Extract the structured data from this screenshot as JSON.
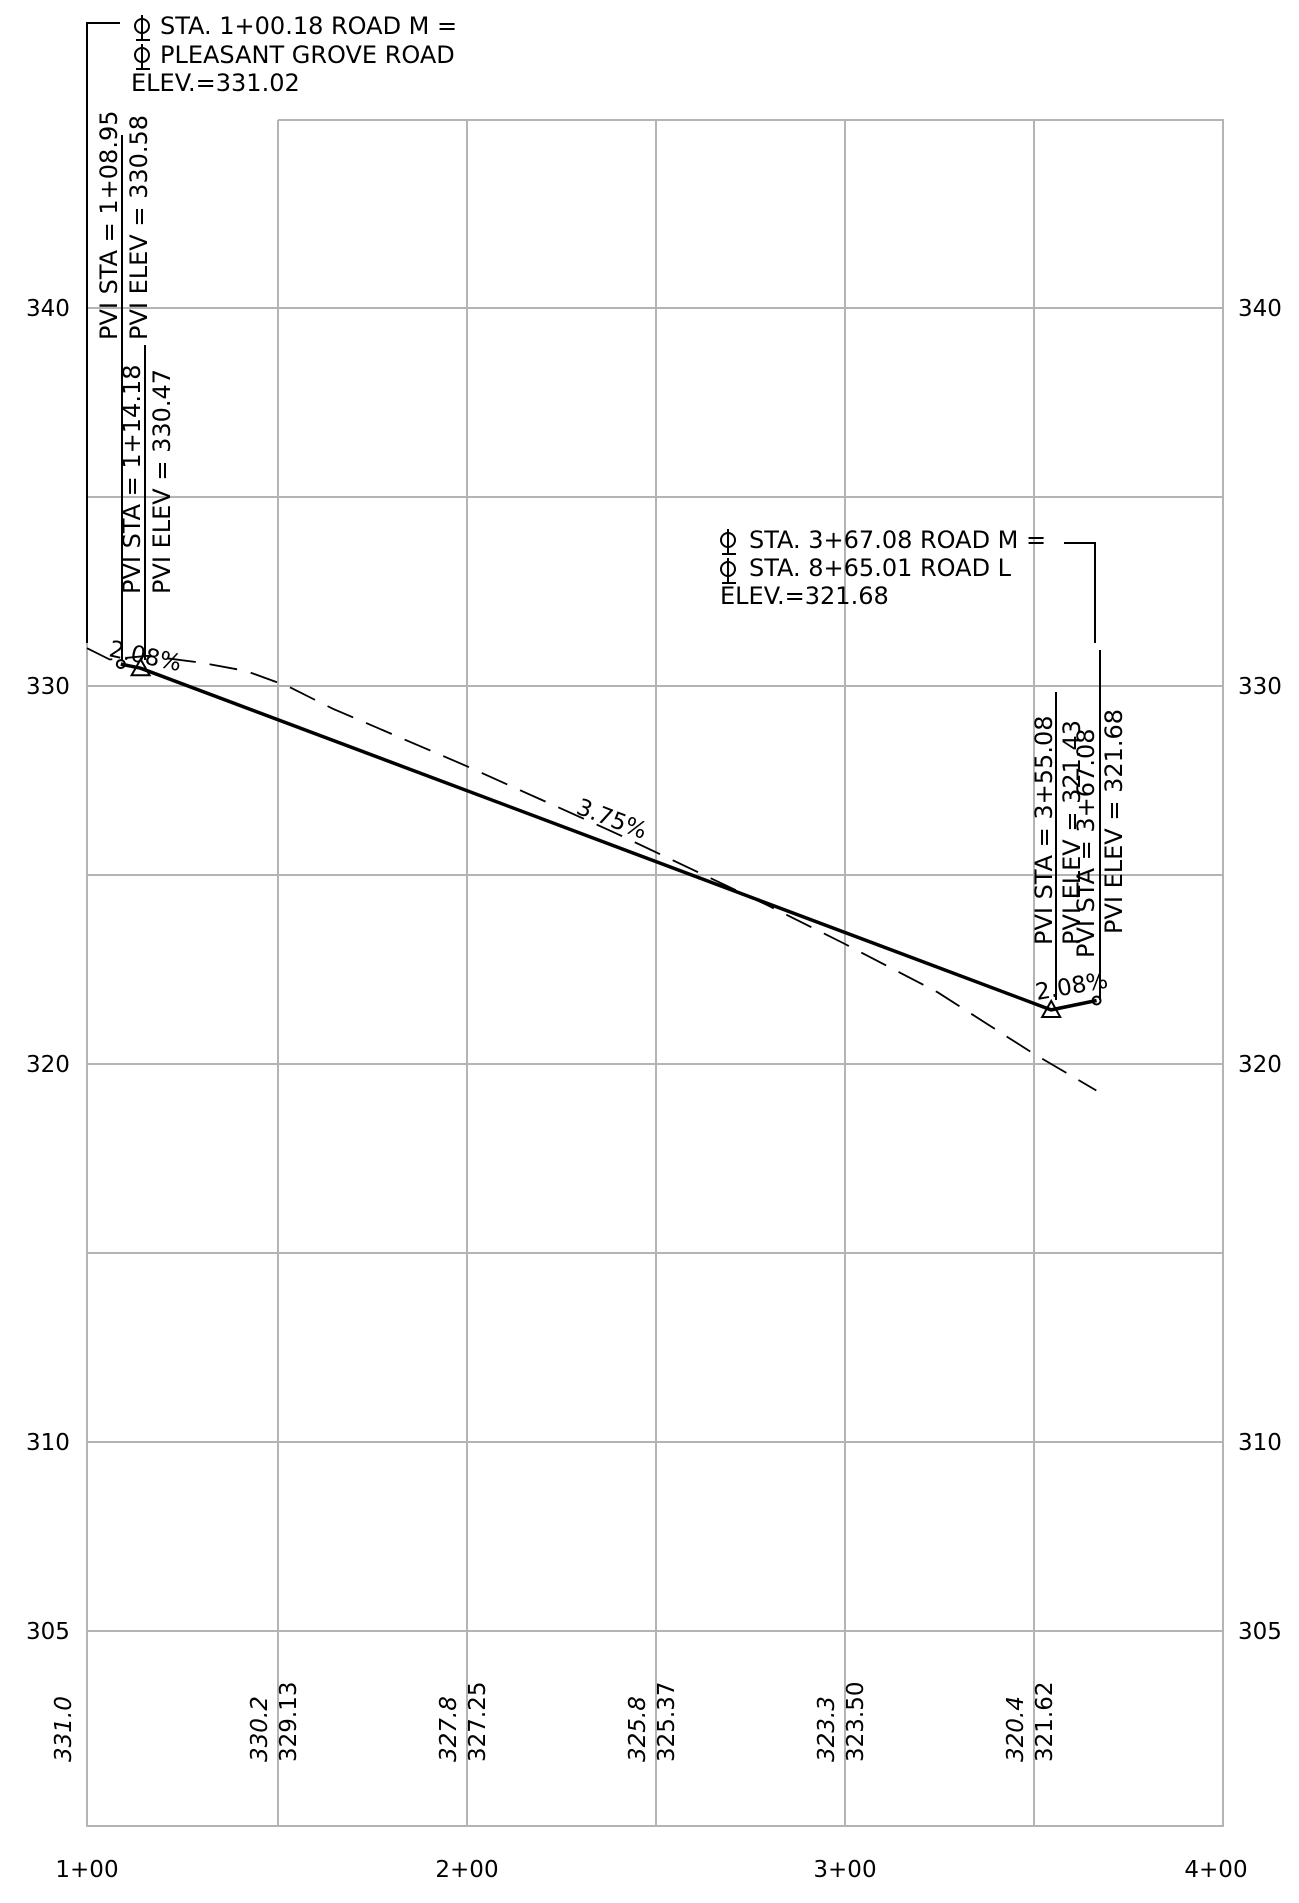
{
  "chart_data": {
    "type": "line",
    "x_ticks": [
      "1+00",
      "2+00",
      "3+00",
      "4+00"
    ],
    "y_ticks": [
      "305",
      "310",
      "320",
      "330",
      "340"
    ],
    "xlim": [
      100,
      400
    ],
    "ylim": [
      305,
      345
    ],
    "grid": true,
    "series": [
      {
        "style": "solid",
        "x": [
          108.95,
          114.18,
          355.08,
          367.08
        ],
        "y": [
          330.58,
          330.47,
          321.43,
          321.68
        ]
      },
      {
        "style": "dashed",
        "x": [
          100,
          106,
          116,
          130,
          142,
          153,
          165,
          200,
          240,
          280,
          300,
          325,
          350,
          367
        ],
        "y": [
          331.0,
          330.7,
          330.8,
          330.62,
          330.4,
          330.0,
          329.4,
          327.9,
          326.1,
          324.2,
          323.2,
          321.9,
          320.3,
          319.3
        ]
      }
    ],
    "grade_labels": [
      "2.08%",
      "3.75%",
      "2.08%"
    ],
    "station_elevations": [
      {
        "station": 100,
        "existing": "331.0",
        "proposed": ""
      },
      {
        "station": 150,
        "existing": "330.2",
        "proposed": "329.13"
      },
      {
        "station": 200,
        "existing": "327.8",
        "proposed": "327.25"
      },
      {
        "station": 250,
        "existing": "325.8",
        "proposed": "325.37"
      },
      {
        "station": 300,
        "existing": "323.3",
        "proposed": "323.50"
      },
      {
        "station": 350,
        "existing": "320.4",
        "proposed": "321.62"
      }
    ],
    "callouts": {
      "top_line1": "STA. 1+00.18 ROAD M =",
      "top_line2": "PLEASANT GROVE ROAD",
      "top_line3": "ELEV.=331.02",
      "right_line1": "STA. 3+67.08 ROAD M =",
      "right_line2": "STA. 8+65.01 ROAD L",
      "right_line3": "ELEV.=321.68"
    },
    "pvi_labels": [
      {
        "sta": "PVI STA = 1+08.95",
        "elev": "PVI ELEV = 330.58"
      },
      {
        "sta": "PVI STA = 1+14.18",
        "elev": "PVI ELEV = 330.47"
      },
      {
        "sta": "PVI STA = 3+55.08",
        "elev": "PVI ELEV = 321.43"
      },
      {
        "sta": "PVI STA = 3+67.08",
        "elev": "PVI ELEV = 321.68"
      }
    ]
  }
}
